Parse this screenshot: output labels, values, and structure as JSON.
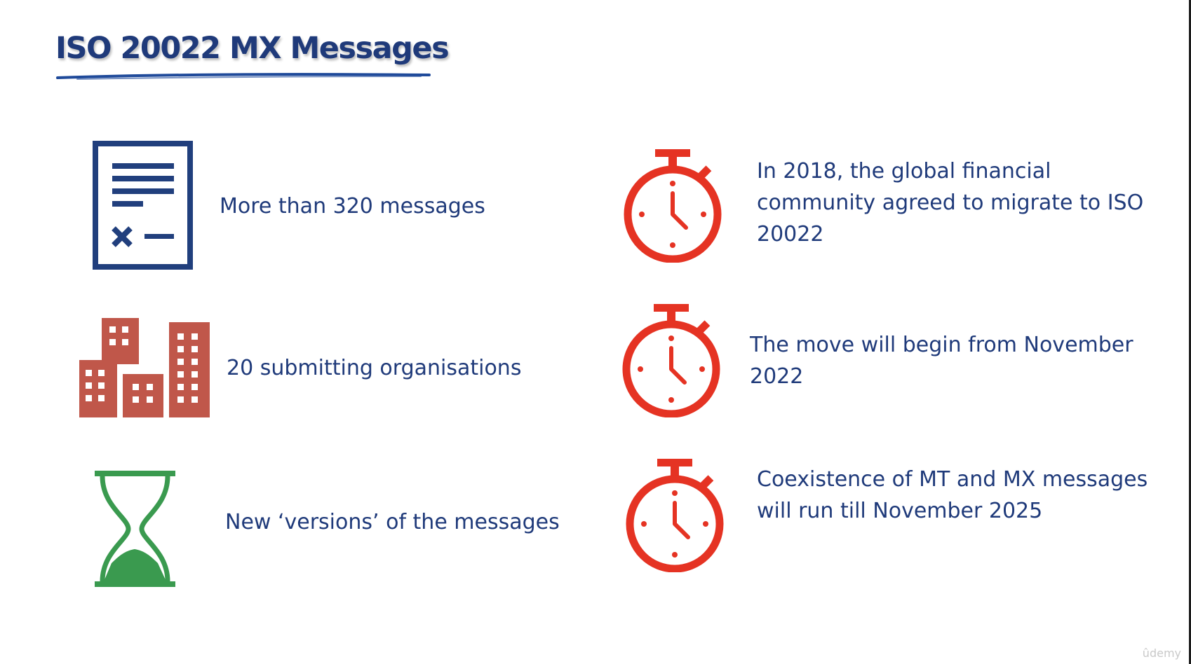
{
  "slide": {
    "title": "ISO 20022 MX Messages",
    "left_items": [
      {
        "icon": "document-icon",
        "text": "More than 320 messages"
      },
      {
        "icon": "buildings-icon",
        "text": "20 submitting organisations"
      },
      {
        "icon": "hourglass-icon",
        "text": "New ‘versions’ of the messages"
      }
    ],
    "right_items": [
      {
        "icon": "stopwatch-icon",
        "text": "In 2018, the global financial community agreed to migrate to ISO 20022"
      },
      {
        "icon": "stopwatch-icon",
        "text": "The move will begin from November 2022"
      },
      {
        "icon": "stopwatch-icon",
        "text": "Coexistence of MT and MX messages will run till November 2025"
      }
    ]
  },
  "watermark": "ûdemy",
  "colors": {
    "title": "#1f3a7a",
    "text": "#1f3a7a",
    "document": "#213f7d",
    "buildings": "#c0574a",
    "hourglass": "#3a9a4f",
    "stopwatch": "#e53323"
  }
}
